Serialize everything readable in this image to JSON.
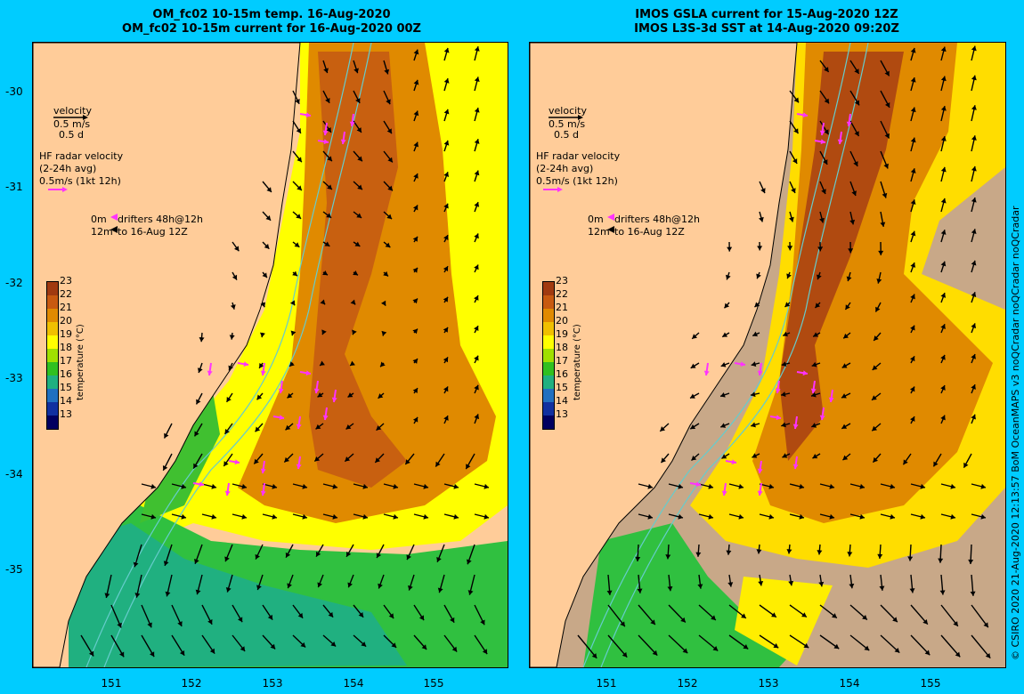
{
  "left_panel": {
    "title_line1": "OM_fc02 10-15m temp. 16-Aug-2020",
    "title_line2": "OM_fc02 10-15m current for 16-Aug-2020 00Z"
  },
  "right_panel": {
    "title_line1": "IMOS GSLA current for 15-Aug-2020 12Z",
    "title_line2": "IMOS L3S-3d SST at 14-Aug-2020 09:20Z"
  },
  "legend": {
    "velocity": "velocity",
    "velocity_scale": "0.5 m/s",
    "velocity_days": "0.5 d",
    "hf_radar": "HF radar velocity",
    "hf_avg": "(2-24h avg)",
    "hf_scale": "0.5m/s (1kt 12h)",
    "drifters_0m": "0m",
    "drifters_label": "drifters 48h@12h",
    "drifters_12m": "12m",
    "drifters_to": "to 16-Aug 12Z"
  },
  "colorbar": {
    "title": "temperature (°C)",
    "ticks": [
      "23",
      "22",
      "21",
      "20",
      "19",
      "18",
      "17",
      "16",
      "15",
      "14",
      "13"
    ],
    "colors": [
      "#a03a10",
      "#c85a10",
      "#e08a00",
      "#f0c000",
      "#ffff00",
      "#a0e000",
      "#30c020",
      "#20b080",
      "#2070c0",
      "#1030a0",
      "#000060"
    ]
  },
  "axes": {
    "lat_ticks": [
      "-30",
      "-31",
      "-32",
      "-33",
      "-34",
      "-35"
    ],
    "lon_ticks": [
      "151",
      "152",
      "153",
      "154",
      "155"
    ]
  },
  "credit": "© CSIRO 2020   21-Aug-2020 12:13:57 BoM OceanMAPS v3 noQCradar noQCradar noQCradar",
  "colors": {
    "land": "#ffcc99",
    "frame_bg": "#00ccff",
    "no_data": "#c8a888",
    "radar_vector": "#ff33ff",
    "isobath": "#66cccc"
  }
}
